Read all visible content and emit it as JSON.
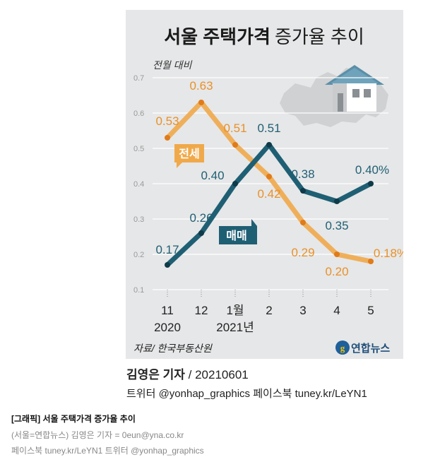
{
  "chart_data": {
    "type": "line",
    "title_bold": "서울 주택가격",
    "title_light": "증가율 추이",
    "ylabel": "전월 대비",
    "ylim": [
      0.1,
      0.7
    ],
    "yticks": [
      "0.1",
      "0.2",
      "0.3",
      "0.4",
      "0.5",
      "0.6",
      "0.7"
    ],
    "grid": true,
    "x_labels": [
      "11",
      "12",
      "1월",
      "2",
      "3",
      "4",
      "5"
    ],
    "year_labels": [
      {
        "text": "2020",
        "index": 0
      },
      {
        "text": "2021년",
        "index": 2
      }
    ],
    "series": [
      {
        "name": "전세",
        "color": "#f0a94a",
        "label_color": "#e8912a",
        "values": [
          0.53,
          0.63,
          0.51,
          0.42,
          0.29,
          0.2,
          0.18
        ],
        "labels": [
          "0.53",
          "0.63",
          "0.51",
          "0.42",
          "0.29",
          "0.20",
          "0.18%"
        ]
      },
      {
        "name": "매매",
        "color": "#1f5f74",
        "label_color": "#1f5f74",
        "values": [
          0.17,
          0.26,
          0.4,
          0.51,
          0.38,
          0.35,
          0.4
        ],
        "labels": [
          "0.17",
          "0.26",
          "0.40",
          "0.51",
          "0.38",
          "0.35",
          "0.40%"
        ]
      }
    ],
    "source": "자료/ 한국부동산원",
    "logo_text": "연합뉴스"
  },
  "credit": {
    "author": "김영은 기자",
    "date": " / 20210601",
    "sns": "트위터 @yonhap_graphics  페이스북 tuney.kr/LeYN1"
  },
  "caption": {
    "title": "[그래픽] 서울 주택가격 증가율 추이",
    "line1": "(서울=연합뉴스) 김영은 기자 = 0eun@yna.co.kr",
    "line2": "페이스북 tuney.kr/LeYN1 트위터 @yonhap_graphics"
  },
  "colors": {
    "panel": "#e6e7e8",
    "jeonse": "#f0a94a",
    "maemae": "#1f5f74"
  }
}
